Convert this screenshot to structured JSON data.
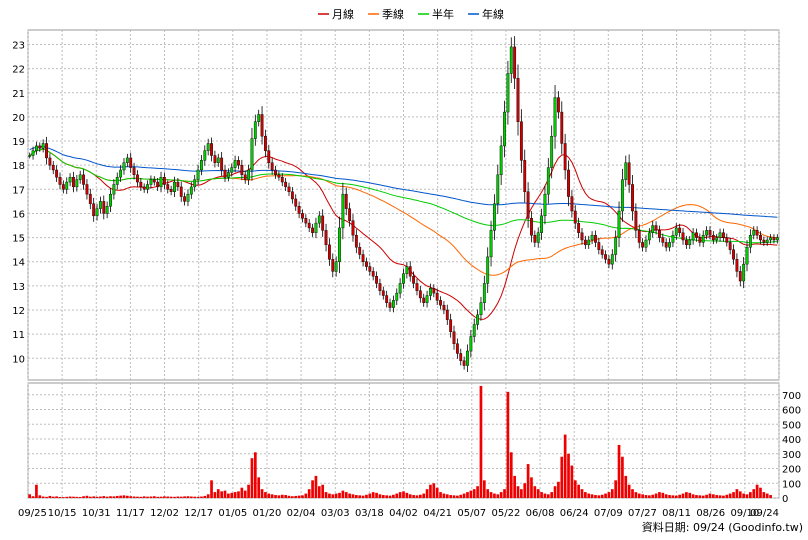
{
  "chart_data": {
    "type": "candlestick",
    "legend": [
      {
        "label": "月線",
        "color": "#cc0000"
      },
      {
        "label": "季線",
        "color": "#ff6600"
      },
      {
        "label": "半年",
        "color": "#00cc00"
      },
      {
        "label": "年線",
        "color": "#0055cc"
      }
    ],
    "price_axis": {
      "ylim": [
        9.1,
        23.6
      ],
      "ticks": [
        10,
        11,
        12,
        13,
        14,
        15,
        16,
        17,
        18,
        19,
        20,
        21,
        22,
        23
      ],
      "side": "left"
    },
    "volume_axis": {
      "ylim": [
        0,
        780
      ],
      "ticks": [
        0,
        100,
        200,
        300,
        400,
        500,
        600,
        700
      ],
      "side": "right"
    },
    "x_tick_labels": [
      "09/25",
      "10/15",
      "10/31",
      "11/17",
      "12/02",
      "12/17",
      "01/05",
      "01/20",
      "02/04",
      "03/03",
      "03/18",
      "04/02",
      "04/21",
      "05/07",
      "05/22",
      "06/08",
      "06/24",
      "07/09",
      "07/27",
      "08/11",
      "08/26",
      "09/10",
      "09/24"
    ],
    "up_color": "#00cc00",
    "down_color": "#cc0000",
    "volume_color": "#ee0000",
    "grid": true,
    "credit": "資料日期: 09/24 (Goodinfo.tw)",
    "closes": [
      18.4,
      18.6,
      18.8,
      18.7,
      18.9,
      18.3,
      18.0,
      17.8,
      17.5,
      17.2,
      17.0,
      17.3,
      17.5,
      17.1,
      17.4,
      17.6,
      17.2,
      16.8,
      16.4,
      15.9,
      16.2,
      16.5,
      16.0,
      16.3,
      16.8,
      17.2,
      17.5,
      17.8,
      18.1,
      18.3,
      17.9,
      17.6,
      17.3,
      17.1,
      17.0,
      17.2,
      17.4,
      17.3,
      17.1,
      17.5,
      17.2,
      17.0,
      16.9,
      17.3,
      17.1,
      16.7,
      16.5,
      16.8,
      17.1,
      17.4,
      17.8,
      18.2,
      18.6,
      18.9,
      18.4,
      18.1,
      18.3,
      17.8,
      17.5,
      17.7,
      17.9,
      18.2,
      18.0,
      17.6,
      17.4,
      17.8,
      19.1,
      19.8,
      20.1,
      19.2,
      18.6,
      18.1,
      17.8,
      17.6,
      17.5,
      17.3,
      17.1,
      16.9,
      16.6,
      16.3,
      16.0,
      15.8,
      15.6,
      15.4,
      15.2,
      15.6,
      15.9,
      15.3,
      14.7,
      14.1,
      13.6,
      14.0,
      15.4,
      16.8,
      16.2,
      15.7,
      15.1,
      14.6,
      14.3,
      14.0,
      13.8,
      13.6,
      13.4,
      13.1,
      12.8,
      12.6,
      12.3,
      12.1,
      12.4,
      12.7,
      13.1,
      13.5,
      13.8,
      13.4,
      13.1,
      12.8,
      12.5,
      12.3,
      12.6,
      12.9,
      12.7,
      12.4,
      12.2,
      12.0,
      11.6,
      11.1,
      10.6,
      10.2,
      9.9,
      9.7,
      10.3,
      10.9,
      11.4,
      11.8,
      12.3,
      13.1,
      14.2,
      15.3,
      16.4,
      17.6,
      18.8,
      20.2,
      21.8,
      22.9,
      21.6,
      19.8,
      18.2,
      16.9,
      15.8,
      15.1,
      14.8,
      15.2,
      15.9,
      16.8,
      17.9,
      19.2,
      20.8,
      20.2,
      18.9,
      17.8,
      16.7,
      16.1,
      15.6,
      15.2,
      14.9,
      14.7,
      14.9,
      15.1,
      14.8,
      14.5,
      14.3,
      14.1,
      13.9,
      14.3,
      15.0,
      16.1,
      17.4,
      18.1,
      17.2,
      16.1,
      15.3,
      14.8,
      14.6,
      14.9,
      15.2,
      15.5,
      15.3,
      15.0,
      14.8,
      14.6,
      14.8,
      15.1,
      15.4,
      15.2,
      14.9,
      14.7,
      14.9,
      15.2,
      15.0,
      14.8,
      15.1,
      15.3,
      15.1,
      14.9,
      15.0,
      15.2,
      15.0,
      14.8,
      14.5,
      14.1,
      13.6,
      13.2,
      13.9,
      14.6,
      15.1,
      15.3,
      15.1,
      14.9,
      14.8,
      14.9,
      15.0,
      14.9,
      15.0
    ],
    "volumes": [
      25,
      12,
      90,
      18,
      10,
      8,
      14,
      9,
      11,
      7,
      6,
      8,
      10,
      9,
      8,
      7,
      12,
      15,
      9,
      11,
      8,
      10,
      13,
      9,
      12,
      11,
      14,
      16,
      18,
      15,
      12,
      10,
      9,
      8,
      11,
      9,
      10,
      12,
      8,
      9,
      11,
      10,
      9,
      8,
      10,
      9,
      11,
      12,
      10,
      9,
      8,
      10,
      14,
      25,
      120,
      40,
      60,
      45,
      50,
      30,
      35,
      40,
      45,
      70,
      50,
      90,
      270,
      310,
      140,
      60,
      40,
      30,
      25,
      20,
      18,
      22,
      20,
      15,
      12,
      14,
      16,
      18,
      30,
      60,
      120,
      150,
      80,
      90,
      40,
      30,
      25,
      30,
      35,
      50,
      40,
      30,
      25,
      20,
      18,
      16,
      22,
      30,
      40,
      35,
      25,
      20,
      18,
      16,
      22,
      30,
      40,
      45,
      35,
      25,
      20,
      18,
      22,
      30,
      60,
      90,
      100,
      70,
      40,
      30,
      25,
      20,
      18,
      16,
      22,
      30,
      40,
      50,
      60,
      80,
      760,
      120,
      60,
      40,
      30,
      25,
      40,
      60,
      720,
      310,
      150,
      80,
      60,
      100,
      230,
      140,
      80,
      60,
      40,
      30,
      25,
      40,
      80,
      110,
      280,
      430,
      300,
      220,
      120,
      90,
      60,
      40,
      30,
      25,
      20,
      18,
      22,
      30,
      40,
      60,
      120,
      360,
      280,
      150,
      90,
      60,
      40,
      30,
      25,
      20,
      18,
      22,
      30,
      40,
      35,
      25,
      20,
      18,
      16,
      22,
      30,
      40,
      35,
      25,
      20,
      18,
      16,
      22,
      30,
      25,
      20,
      18,
      16,
      22,
      30,
      40,
      60,
      45,
      30,
      25,
      40,
      60,
      90,
      70,
      40,
      30,
      20
    ]
  }
}
